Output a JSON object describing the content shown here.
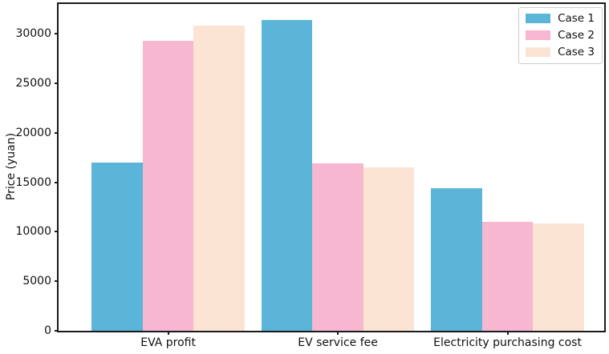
{
  "chart_data": {
    "type": "bar",
    "title": "",
    "xlabel": "",
    "ylabel": "Price (yuan)",
    "categories": [
      "EVA profit",
      "EV service fee",
      "Electricity purchasing cost"
    ],
    "series": [
      {
        "name": "Case 1",
        "color": "#5ab5d8",
        "values": [
          17000,
          31400,
          14400
        ]
      },
      {
        "name": "Case 2",
        "color": "#f8b7d0",
        "values": [
          29300,
          16900,
          11000
        ]
      },
      {
        "name": "Case 3",
        "color": "#fce4d5",
        "values": [
          30800,
          16500,
          10800
        ]
      }
    ],
    "yticks": [
      0,
      5000,
      10000,
      15000,
      20000,
      25000,
      30000
    ],
    "ylim": [
      0,
      33000
    ],
    "grid": false,
    "legend_position": "upper right",
    "colors": {
      "spine": "#1a1a1a",
      "text": "#111111",
      "legend_border": "#cccccc",
      "background": "#ffffff"
    }
  }
}
